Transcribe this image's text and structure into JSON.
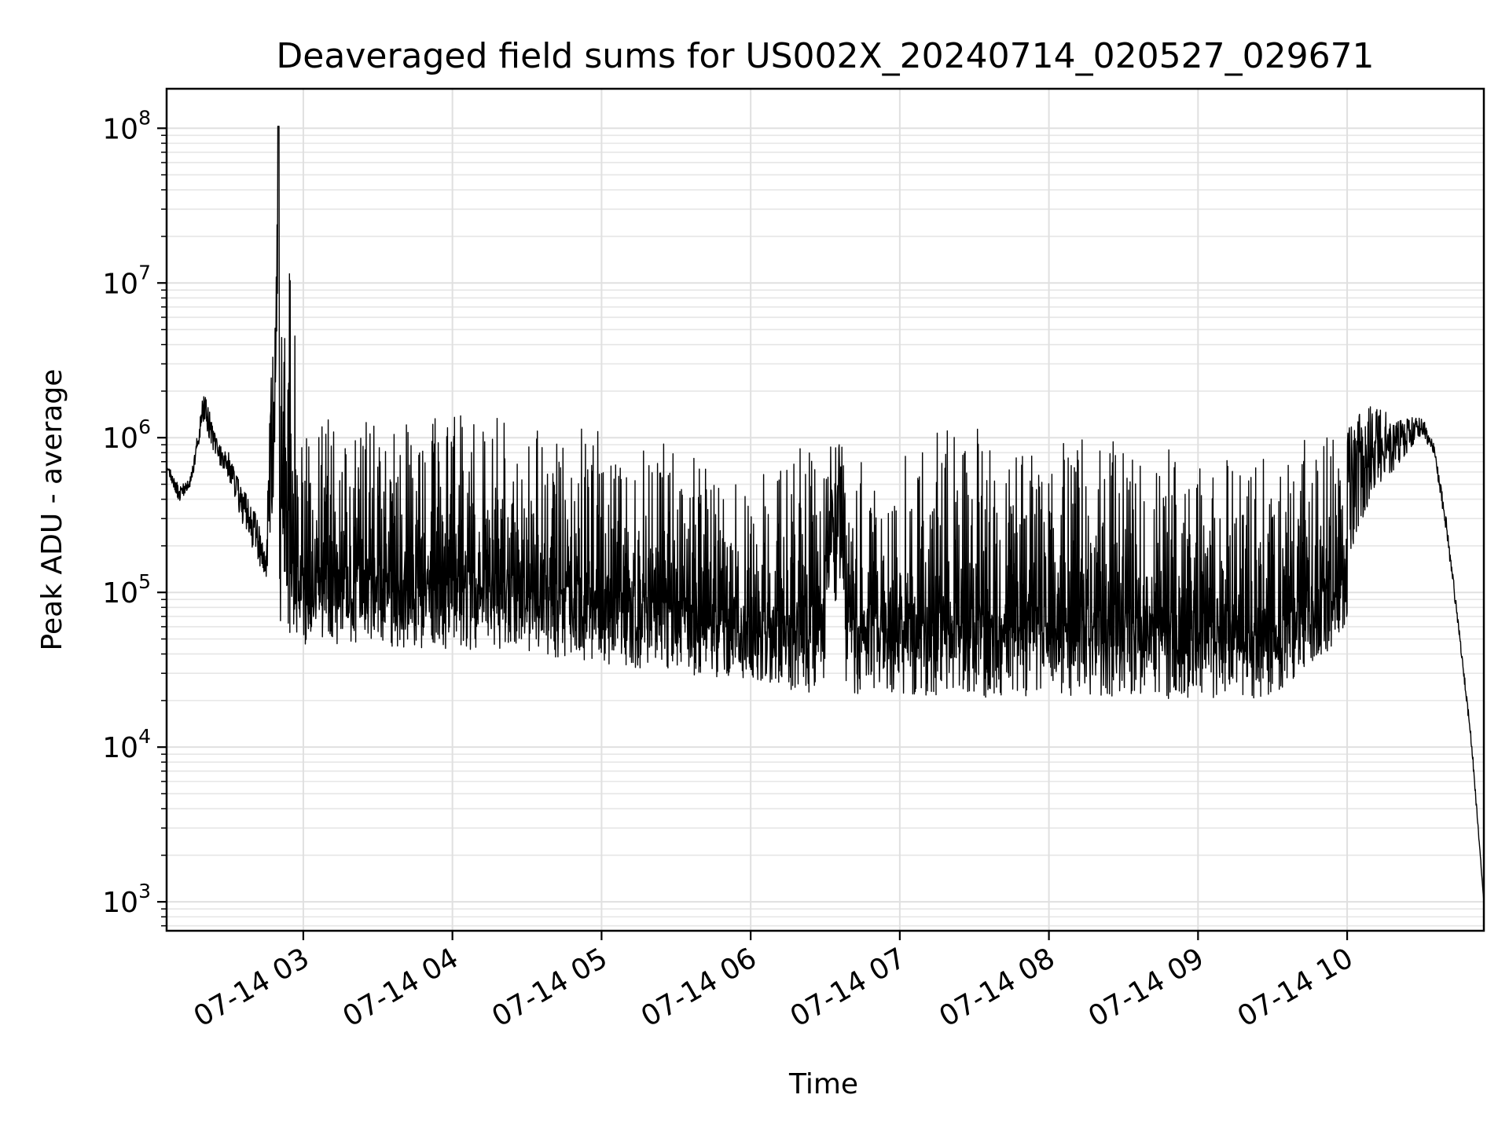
{
  "chart_data": {
    "type": "line",
    "title": "Deaveraged field sums for US002X_20240714_020527_029671",
    "xlabel": "Time",
    "ylabel": "Peak ADU - average",
    "yscale": "log",
    "ylim": [
      650,
      180000000
    ],
    "xlim": [
      "2024-07-14 02:05",
      "2024-07-14 10:55"
    ],
    "x_tick_labels": [
      "07-14 03",
      "07-14 04",
      "07-14 05",
      "07-14 06",
      "07-14 07",
      "07-14 08",
      "07-14 09",
      "07-14 10"
    ],
    "x_tick_times": [
      "2024-07-14 03:00",
      "2024-07-14 04:00",
      "2024-07-14 05:00",
      "2024-07-14 06:00",
      "2024-07-14 07:00",
      "2024-07-14 08:00",
      "2024-07-14 09:00",
      "2024-07-14 10:00"
    ],
    "y_tick_values": [
      1000,
      10000,
      100000,
      1000000,
      10000000,
      100000000
    ],
    "y_tick_labels": [
      {
        "base": "10",
        "exp": "3"
      },
      {
        "base": "10",
        "exp": "4"
      },
      {
        "base": "10",
        "exp": "5"
      },
      {
        "base": "10",
        "exp": "6"
      },
      {
        "base": "10",
        "exp": "7"
      },
      {
        "base": "10",
        "exp": "8"
      }
    ],
    "grid": true,
    "line_color": "#000000",
    "series": [
      {
        "points": [
          {
            "t": "2024-07-14 02:05",
            "floor": 600000,
            "peak": 700000
          },
          {
            "t": "2024-07-14 02:10",
            "floor": 330000,
            "peak": 500000
          },
          {
            "t": "2024-07-14 02:15",
            "floor": 450000,
            "peak": 600000
          },
          {
            "t": "2024-07-14 02:18",
            "floor": 800000,
            "peak": 1200000
          },
          {
            "t": "2024-07-14 02:20",
            "floor": 900000,
            "peak": 2100000
          },
          {
            "t": "2024-07-14 02:25",
            "floor": 600000,
            "peak": 1000000
          },
          {
            "t": "2024-07-14 02:30",
            "floor": 450000,
            "peak": 800000
          },
          {
            "t": "2024-07-14 02:35",
            "floor": 220000,
            "peak": 500000
          },
          {
            "t": "2024-07-14 02:40",
            "floor": 130000,
            "peak": 350000
          },
          {
            "t": "2024-07-14 02:45",
            "floor": 90000,
            "peak": 200000
          },
          {
            "t": "2024-07-14 02:50",
            "floor": 55000,
            "peak": 103000000
          },
          {
            "t": "2024-07-14 03:00",
            "floor": 45000,
            "peak": 1500000
          },
          {
            "t": "2024-07-14 03:30",
            "floor": 45000,
            "peak": 1500000
          },
          {
            "t": "2024-07-14 04:00",
            "floor": 42000,
            "peak": 1450000
          },
          {
            "t": "2024-07-14 04:30",
            "floor": 40000,
            "peak": 1500000
          },
          {
            "t": "2024-07-14 05:00",
            "floor": 35000,
            "peak": 1300000
          },
          {
            "t": "2024-07-14 05:30",
            "floor": 30000,
            "peak": 900000
          },
          {
            "t": "2024-07-14 06:00",
            "floor": 25000,
            "peak": 600000
          },
          {
            "t": "2024-07-14 06:30",
            "floor": 22000,
            "peak": 1100000
          },
          {
            "t": "2024-07-14 07:00",
            "floor": 22000,
            "peak": 1100000
          },
          {
            "t": "2024-07-14 07:30",
            "floor": 21000,
            "peak": 1150000
          },
          {
            "t": "2024-07-14 08:00",
            "floor": 21000,
            "peak": 1150000
          },
          {
            "t": "2024-07-14 08:30",
            "floor": 21000,
            "peak": 1100000
          },
          {
            "t": "2024-07-14 09:00",
            "floor": 20000,
            "peak": 1000000
          },
          {
            "t": "2024-07-14 09:30",
            "floor": 21000,
            "peak": 900000
          },
          {
            "t": "2024-07-14 10:00",
            "floor": 50000,
            "peak": 1200000
          },
          {
            "t": "2024-07-14 10:10",
            "floor": 200000,
            "peak": 1700000
          },
          {
            "t": "2024-07-14 10:20",
            "floor": 450000,
            "peak": 1300000
          },
          {
            "t": "2024-07-14 10:30",
            "floor": 900000,
            "peak": 1400000
          },
          {
            "t": "2024-07-14 10:35",
            "floor": 700000,
            "peak": 900000
          },
          {
            "t": "2024-07-14 10:40",
            "floor": 200000,
            "peak": 300000
          },
          {
            "t": "2024-07-14 10:45",
            "floor": 50000,
            "peak": 60000
          },
          {
            "t": "2024-07-14 10:50",
            "floor": 9000,
            "peak": 12000
          },
          {
            "t": "2024-07-14 10:55",
            "floor": 1000,
            "peak": 1000
          }
        ]
      }
    ]
  }
}
